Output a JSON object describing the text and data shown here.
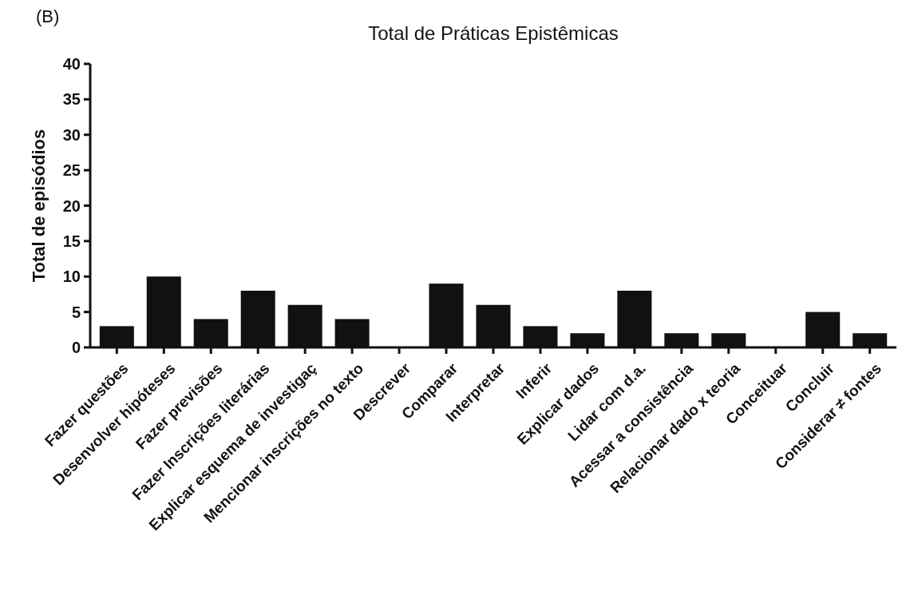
{
  "chart_data": {
    "type": "bar",
    "title": "Total de Práticas Epistêmicas",
    "ylabel": "Total de episódios",
    "annotations": [
      "(B)"
    ],
    "categories": [
      "Fazer questões",
      "Desenvolver hipóteses",
      "Fazer previsões",
      "Fazer Inscrições literárias",
      "Explicar esquema de investigaç",
      "Mencionar inscrições no texto",
      "Descrever",
      "Comparar",
      "Interpretar",
      "Inferir",
      "Explicar dados",
      "Lidar com d.a.",
      "Acessar a consistência",
      "Relacionar dado x teoria",
      "Conceituar",
      "Concluir",
      "Considerar ≠ fontes"
    ],
    "values": [
      3,
      10,
      4,
      8,
      6,
      4,
      0,
      9,
      6,
      3,
      2,
      8,
      2,
      2,
      0,
      5,
      2
    ],
    "color": "#111111",
    "ylim": [
      0,
      40
    ],
    "yticks": [
      0,
      5,
      10,
      15,
      20,
      25,
      30,
      35,
      40
    ],
    "grid": false
  }
}
